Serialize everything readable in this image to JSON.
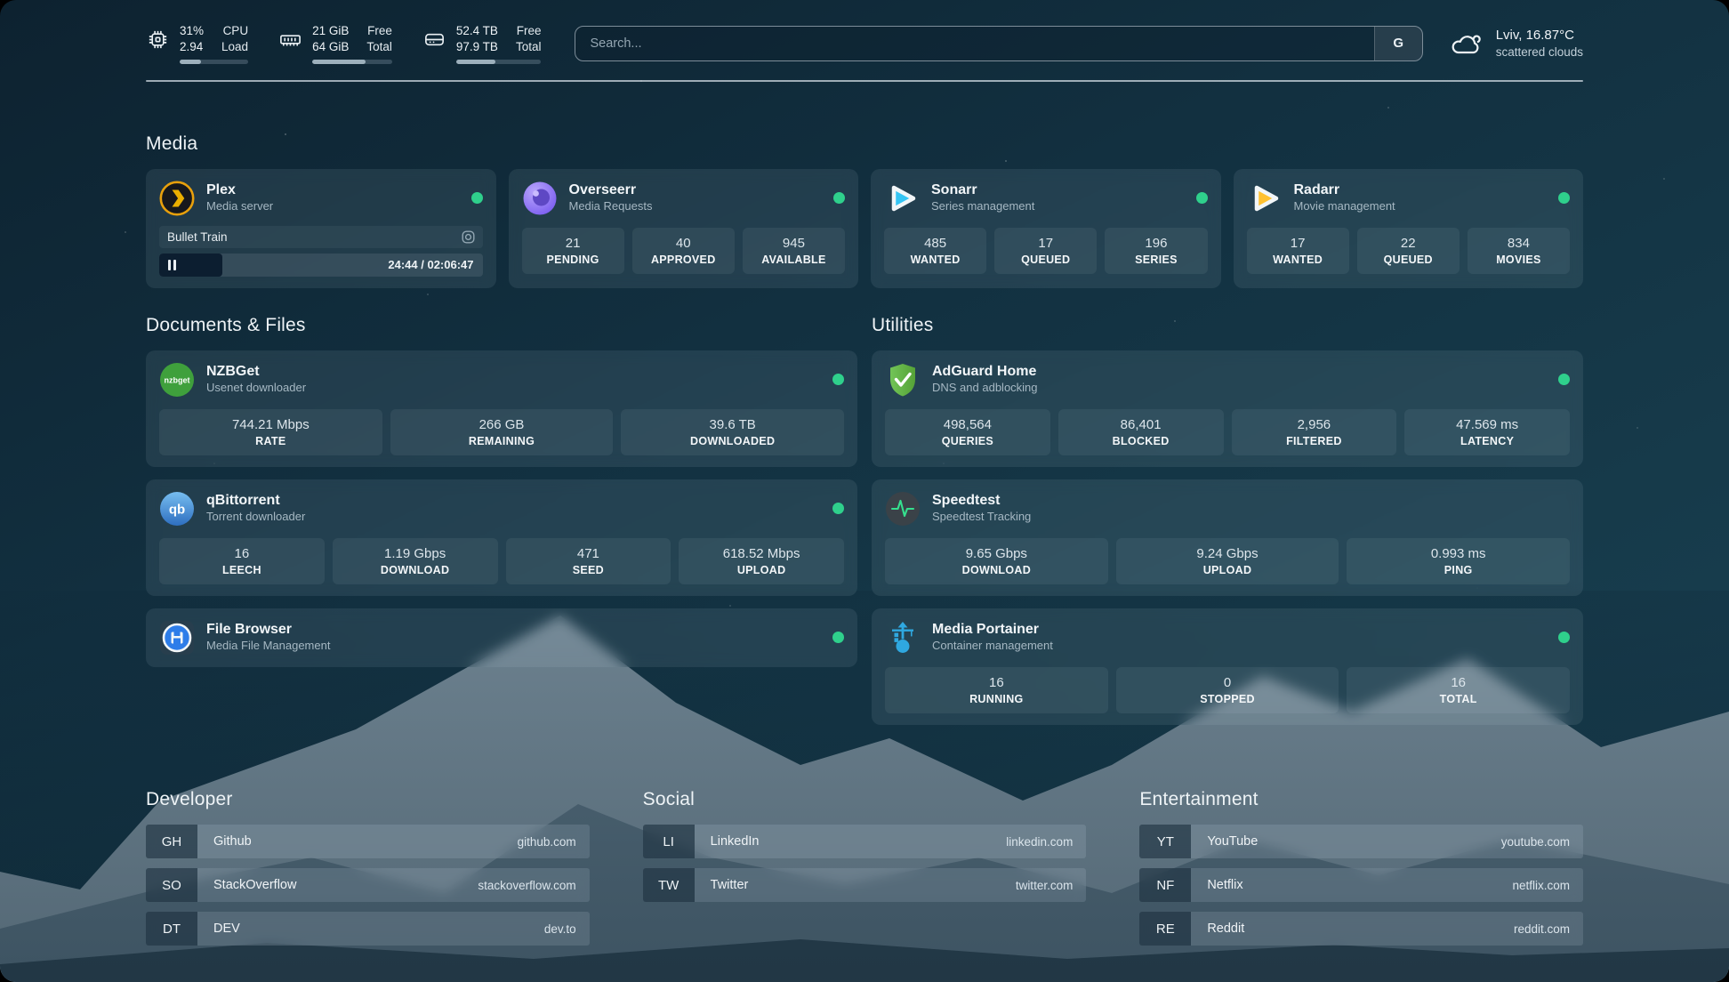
{
  "colors": {
    "status_online": "#2fd08c"
  },
  "header": {
    "resources": [
      {
        "icon": "cpu-icon",
        "rows": [
          {
            "value": "31%",
            "label": "CPU"
          },
          {
            "value": "2.94",
            "label": "Load"
          }
        ],
        "progress": 31
      },
      {
        "icon": "memory-icon",
        "rows": [
          {
            "value": "21 GiB",
            "label": "Free"
          },
          {
            "value": "64 GiB",
            "label": "Total"
          }
        ],
        "progress": 67
      },
      {
        "icon": "disk-icon",
        "rows": [
          {
            "value": "52.4 TB",
            "label": "Free"
          },
          {
            "value": "97.9 TB",
            "label": "Total"
          }
        ],
        "progress": 46
      }
    ],
    "search": {
      "placeholder": "Search...",
      "provider": "G"
    },
    "weather": {
      "icon": "cloud-icon",
      "location": "Lviv, 16.87°C",
      "condition": "scattered clouds"
    }
  },
  "sections": {
    "media": {
      "title": "Media",
      "apps": [
        {
          "icon": "plex-icon",
          "name": "Plex",
          "desc": "Media server",
          "online": true,
          "now_playing": {
            "title": "Bullet Train",
            "progress": 19.5,
            "time": "24:44 / 02:06:47"
          }
        },
        {
          "icon": "overseerr-icon",
          "name": "Overseerr",
          "desc": "Media Requests",
          "online": true,
          "stats": [
            {
              "value": "21",
              "label": "PENDING"
            },
            {
              "value": "40",
              "label": "APPROVED"
            },
            {
              "value": "945",
              "label": "AVAILABLE"
            }
          ]
        },
        {
          "icon": "sonarr-icon",
          "name": "Sonarr",
          "desc": "Series management",
          "online": true,
          "stats": [
            {
              "value": "485",
              "label": "WANTED"
            },
            {
              "value": "17",
              "label": "QUEUED"
            },
            {
              "value": "196",
              "label": "SERIES"
            }
          ]
        },
        {
          "icon": "radarr-icon",
          "name": "Radarr",
          "desc": "Movie management",
          "online": true,
          "stats": [
            {
              "value": "17",
              "label": "WANTED"
            },
            {
              "value": "22",
              "label": "QUEUED"
            },
            {
              "value": "834",
              "label": "MOVIES"
            }
          ]
        }
      ]
    },
    "documents": {
      "title": "Documents & Files",
      "apps": [
        {
          "icon": "nzbget-icon",
          "icon_text": "nzbget",
          "name": "NZBGet",
          "desc": "Usenet downloader",
          "online": true,
          "stats": [
            {
              "value": "744.21 Mbps",
              "label": "RATE"
            },
            {
              "value": "266 GB",
              "label": "REMAINING"
            },
            {
              "value": "39.6 TB",
              "label": "DOWNLOADED"
            }
          ]
        },
        {
          "icon": "qbittorrent-icon",
          "icon_text": "qb",
          "name": "qBittorrent",
          "desc": "Torrent downloader",
          "online": true,
          "stats": [
            {
              "value": "16",
              "label": "LEECH"
            },
            {
              "value": "1.19 Gbps",
              "label": "DOWNLOAD"
            },
            {
              "value": "471",
              "label": "SEED"
            },
            {
              "value": "618.52 Mbps",
              "label": "UPLOAD"
            }
          ]
        },
        {
          "icon": "filebrowser-icon",
          "name": "File Browser",
          "desc": "Media File Management",
          "online": true,
          "stats": []
        }
      ]
    },
    "utilities": {
      "title": "Utilities",
      "apps": [
        {
          "icon": "adguard-icon",
          "name": "AdGuard Home",
          "desc": "DNS and adblocking",
          "online": true,
          "stats": [
            {
              "value": "498,564",
              "label": "QUERIES"
            },
            {
              "value": "86,401",
              "label": "BLOCKED"
            },
            {
              "value": "2,956",
              "label": "FILTERED"
            },
            {
              "value": "47.569 ms",
              "label": "LATENCY"
            }
          ]
        },
        {
          "icon": "speedtest-icon",
          "name": "Speedtest",
          "desc": "Speedtest Tracking",
          "online": false,
          "stats": [
            {
              "value": "9.65 Gbps",
              "label": "DOWNLOAD"
            },
            {
              "value": "9.24 Gbps",
              "label": "UPLOAD"
            },
            {
              "value": "0.993 ms",
              "label": "PING"
            }
          ]
        },
        {
          "icon": "portainer-icon",
          "name": "Media Portainer",
          "desc": "Container management",
          "online": true,
          "stats": [
            {
              "value": "16",
              "label": "RUNNING"
            },
            {
              "value": "0",
              "label": "STOPPED"
            },
            {
              "value": "16",
              "label": "TOTAL"
            }
          ]
        }
      ]
    },
    "bookmarks": [
      {
        "title": "Developer",
        "links": [
          {
            "abbr": "GH",
            "name": "Github",
            "domain": "github.com"
          },
          {
            "abbr": "SO",
            "name": "StackOverflow",
            "domain": "stackoverflow.com"
          },
          {
            "abbr": "DT",
            "name": "DEV",
            "domain": "dev.to"
          }
        ]
      },
      {
        "title": "Social",
        "links": [
          {
            "abbr": "LI",
            "name": "LinkedIn",
            "domain": "linkedin.com"
          },
          {
            "abbr": "TW",
            "name": "Twitter",
            "domain": "twitter.com"
          }
        ]
      },
      {
        "title": "Entertainment",
        "links": [
          {
            "abbr": "YT",
            "name": "YouTube",
            "domain": "youtube.com"
          },
          {
            "abbr": "NF",
            "name": "Netflix",
            "domain": "netflix.com"
          },
          {
            "abbr": "RE",
            "name": "Reddit",
            "domain": "reddit.com"
          }
        ]
      }
    ]
  }
}
